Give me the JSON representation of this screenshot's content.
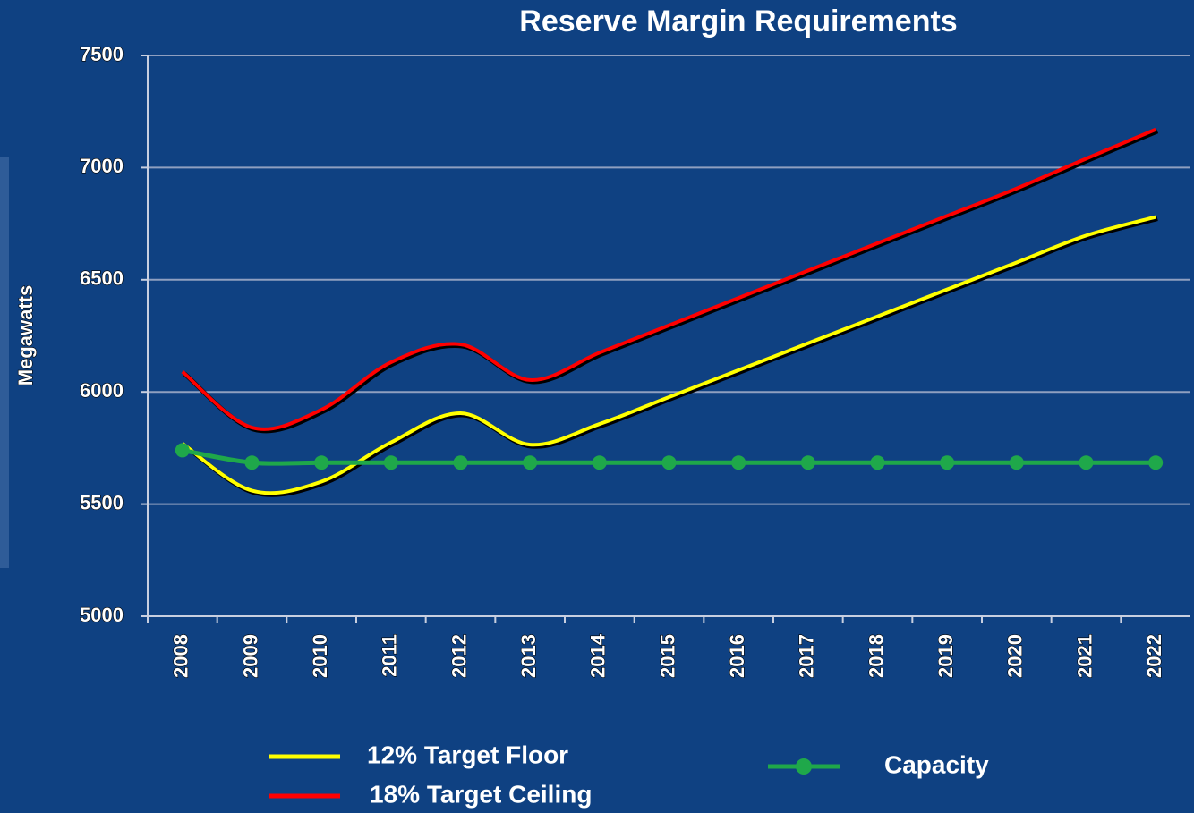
{
  "chart_data": {
    "type": "line",
    "title": "Reserve Margin Requirements",
    "y_label": "Megawatts",
    "categories": [
      "2008",
      "2009",
      "2010",
      "2011",
      "2012",
      "2013",
      "2014",
      "2015",
      "2016",
      "2017",
      "2018",
      "2019",
      "2020",
      "2021",
      "2022"
    ],
    "series": [
      {
        "name": "12%  Target Floor",
        "color": "#ffff00",
        "values": [
          5770,
          5560,
          5600,
          5775,
          5905,
          5765,
          5857,
          5977,
          6097,
          6217,
          6337,
          6457,
          6577,
          6697,
          6780
        ]
      },
      {
        "name": "18% Target Ceiling",
        "color": "#ff0000",
        "values": [
          6090,
          5841,
          5921,
          6132,
          6212,
          6053,
          6175,
          6297,
          6419,
          6541,
          6663,
          6785,
          6907,
          7040,
          7170
        ]
      },
      {
        "name": "Capacity",
        "color": "#1fa84a",
        "markers": true,
        "values": [
          5740,
          5685,
          5685,
          5685,
          5685,
          5685,
          5685,
          5685,
          5685,
          5685,
          5685,
          5685,
          5685,
          5685,
          5685
        ]
      }
    ],
    "ylim": [
      5000,
      7500
    ],
    "yticks": [
      5000,
      5500,
      6000,
      6500,
      7000,
      7500
    ],
    "grid": true
  }
}
